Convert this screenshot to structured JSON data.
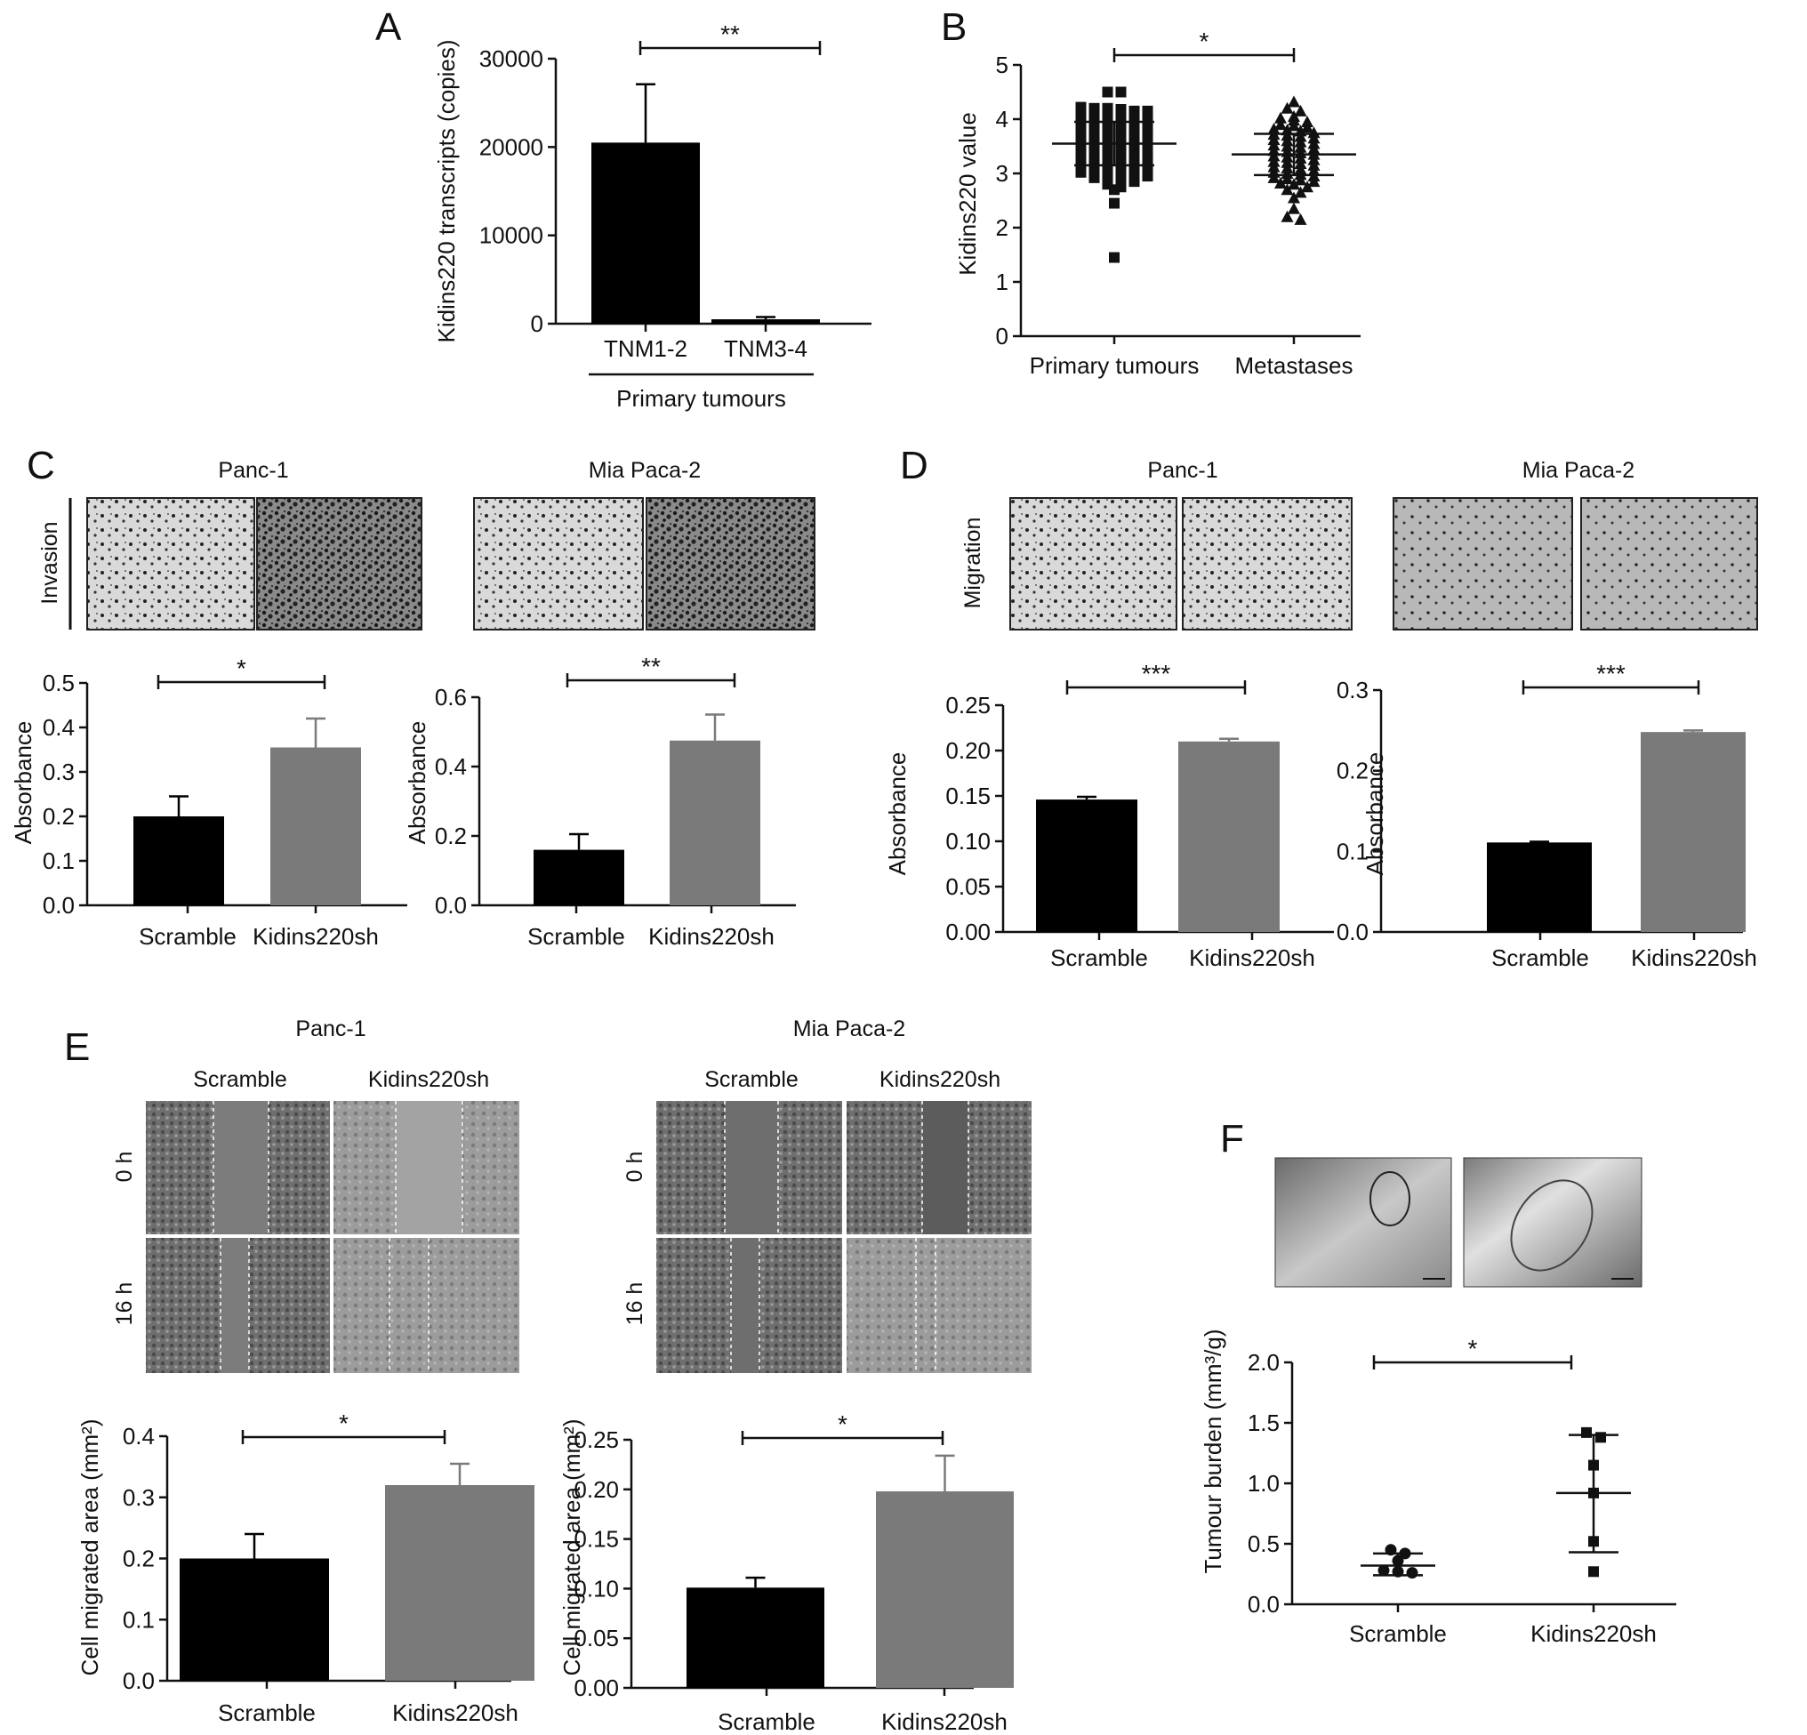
{
  "panels": {
    "A": {
      "letter": "A"
    },
    "B": {
      "letter": "B"
    },
    "C": {
      "letter": "C"
    },
    "D": {
      "letter": "D"
    },
    "E": {
      "letter": "E"
    },
    "F": {
      "letter": "F"
    }
  },
  "cell_lines": {
    "panc1": "Panc-1",
    "miapaca2": "Mia Paca-2"
  },
  "row_labels": {
    "invasion": "Invasion",
    "migration": "Migration",
    "h0": "0 h",
    "h16": "16 h"
  },
  "column_labels": {
    "scramble": "Scramble",
    "kidins": "Kidins220sh"
  },
  "colors": {
    "black_bar": "#000000",
    "grey_bar": "#7a7a7a"
  },
  "chart_data": [
    {
      "id": "A",
      "type": "bar",
      "categories": [
        "TNM1-2",
        "TNM3-4"
      ],
      "values": [
        20500,
        500
      ],
      "errors": [
        6600,
        250
      ],
      "colors": [
        "#000000",
        "#000000"
      ],
      "group_label": "Primary tumours",
      "ylabel": "Kidins220 transcripts (copies)",
      "ylim": [
        0,
        30000
      ],
      "yticks": [
        "0",
        "10000",
        "20000",
        "30000"
      ],
      "significance": "**"
    },
    {
      "id": "B",
      "type": "scatter",
      "categories": [
        "Primary tumours",
        "Metastases"
      ],
      "means": [
        3.55,
        3.35
      ],
      "sd": [
        0.4,
        0.38
      ],
      "ylabel": "Kidins220 value",
      "ylim": [
        0,
        5
      ],
      "yticks": [
        "0",
        "1",
        "2",
        "3",
        "4",
        "5"
      ],
      "significance": "*",
      "series": [
        {
          "markers": "square",
          "values": [
            4.5,
            4.5,
            4.22,
            4.2,
            4.2,
            4.18,
            4.15,
            4.15,
            4.12,
            4.1,
            4.1,
            4.08,
            4.05,
            4.05,
            4.02,
            4.0,
            4.0,
            3.98,
            3.95,
            3.95,
            3.92,
            3.9,
            3.9,
            3.88,
            3.85,
            3.85,
            3.82,
            3.8,
            3.8,
            3.78,
            3.75,
            3.75,
            3.72,
            3.7,
            3.7,
            3.68,
            3.65,
            3.65,
            3.62,
            3.6,
            3.6,
            3.58,
            3.55,
            3.55,
            3.52,
            3.5,
            3.5,
            3.48,
            3.45,
            3.45,
            3.42,
            3.4,
            3.4,
            3.38,
            3.35,
            3.35,
            3.32,
            3.3,
            3.3,
            3.28,
            3.25,
            3.25,
            3.22,
            3.2,
            3.2,
            3.18,
            3.15,
            3.15,
            3.12,
            3.1,
            3.1,
            3.08,
            3.05,
            3.05,
            3.02,
            3.0,
            3.0,
            2.98,
            2.95,
            2.95,
            2.92,
            2.9,
            2.88,
            2.85,
            2.8,
            2.75,
            2.7,
            2.45,
            1.45
          ]
        },
        {
          "markers": "triangle",
          "values": [
            4.32,
            4.2,
            4.15,
            4.05,
            4.02,
            3.98,
            3.95,
            3.9,
            3.88,
            3.85,
            3.82,
            3.8,
            3.78,
            3.75,
            3.72,
            3.7,
            3.68,
            3.65,
            3.62,
            3.6,
            3.58,
            3.55,
            3.52,
            3.5,
            3.48,
            3.45,
            3.42,
            3.4,
            3.38,
            3.35,
            3.32,
            3.3,
            3.28,
            3.25,
            3.22,
            3.2,
            3.18,
            3.15,
            3.12,
            3.1,
            3.08,
            3.05,
            3.02,
            3.0,
            2.98,
            2.95,
            2.92,
            2.9,
            2.88,
            2.85,
            2.82,
            2.8,
            2.75,
            2.7,
            2.65,
            2.55,
            2.35,
            2.2,
            2.15
          ]
        }
      ]
    },
    {
      "id": "C1",
      "type": "bar",
      "categories": [
        "Scramble",
        "Kidins220sh"
      ],
      "values": [
        0.2,
        0.355
      ],
      "errors": [
        0.045,
        0.065
      ],
      "colors": [
        "#000000",
        "#7a7a7a"
      ],
      "ylabel": "Absorbance",
      "ylim": [
        0,
        0.5
      ],
      "yticks": [
        "0.0",
        "0.1",
        "0.2",
        "0.3",
        "0.4",
        "0.5"
      ],
      "significance": "*"
    },
    {
      "id": "C2",
      "type": "bar",
      "categories": [
        "Scramble",
        "Kidins220sh"
      ],
      "values": [
        0.16,
        0.475
      ],
      "errors": [
        0.045,
        0.075
      ],
      "colors": [
        "#000000",
        "#7a7a7a"
      ],
      "ylabel": "Absorbance",
      "ylim": [
        0,
        0.6
      ],
      "yticks": [
        "0.0",
        "0.2",
        "0.4",
        "0.6"
      ],
      "significance": "**"
    },
    {
      "id": "D1",
      "type": "bar",
      "categories": [
        "Scramble",
        "Kidins220sh"
      ],
      "values": [
        0.146,
        0.21
      ],
      "errors": [
        0.003,
        0.003
      ],
      "colors": [
        "#000000",
        "#7a7a7a"
      ],
      "ylabel": "Absorbance",
      "ylim": [
        0,
        0.25
      ],
      "yticks": [
        "0.00",
        "0.05",
        "0.10",
        "0.15",
        "0.20",
        "0.25"
      ],
      "significance": "***"
    },
    {
      "id": "D2",
      "type": "bar",
      "categories": [
        "Scramble",
        "Kidins220sh"
      ],
      "values": [
        0.111,
        0.248
      ],
      "errors": [
        0.001,
        0.002
      ],
      "colors": [
        "#000000",
        "#7a7a7a"
      ],
      "ylabel": "Absorbance",
      "ylim": [
        0,
        0.3
      ],
      "yticks": [
        "0.0",
        "0.1",
        "0.2",
        "0.3"
      ],
      "significance": "***"
    },
    {
      "id": "E1",
      "type": "bar",
      "categories": [
        "Scramble",
        "Kidins220sh"
      ],
      "values": [
        0.2,
        0.32
      ],
      "errors": [
        0.04,
        0.035
      ],
      "colors": [
        "#000000",
        "#7a7a7a"
      ],
      "ylabel": "Cell migrated area (mm²)",
      "ylim": [
        0,
        0.4
      ],
      "yticks": [
        "0.0",
        "0.1",
        "0.2",
        "0.3",
        "0.4"
      ],
      "significance": "*"
    },
    {
      "id": "E2",
      "type": "bar",
      "categories": [
        "Scramble",
        "Kidins220sh"
      ],
      "values": [
        0.101,
        0.198
      ],
      "errors": [
        0.01,
        0.036
      ],
      "colors": [
        "#000000",
        "#7a7a7a"
      ],
      "ylabel": "Cell migrated area (mm²)",
      "ylim": [
        0,
        0.25
      ],
      "yticks": [
        "0.00",
        "0.05",
        "0.10",
        "0.15",
        "0.20",
        "0.25"
      ],
      "significance": "*"
    },
    {
      "id": "F",
      "type": "scatter",
      "categories": [
        "Scramble",
        "Kidins220sh"
      ],
      "means": [
        0.32,
        0.92
      ],
      "sd_low": [
        0.24,
        0.43
      ],
      "sd_high": [
        0.42,
        1.4
      ],
      "ylabel": "Tumour burden (mm³/g)",
      "ylim": [
        0,
        2.0
      ],
      "yticks": [
        "0.0",
        "0.5",
        "1.0",
        "1.5",
        "2.0"
      ],
      "significance": "*",
      "series": [
        {
          "markers": "circle",
          "values": [
            0.45,
            0.42,
            0.36,
            0.28,
            0.27,
            0.26
          ]
        },
        {
          "markers": "square",
          "values": [
            1.42,
            1.38,
            1.15,
            0.92,
            0.52,
            0.27
          ]
        }
      ]
    }
  ]
}
